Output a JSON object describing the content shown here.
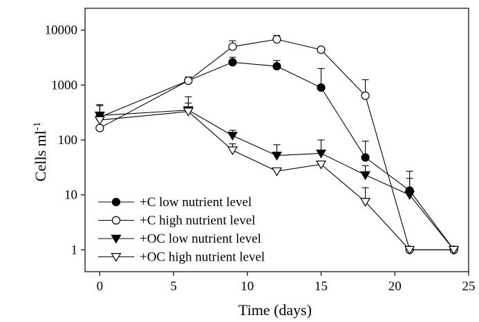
{
  "chart_data": {
    "type": "line",
    "xlabel": "Time (days)",
    "ylabel": "Cells ml",
    "ylabel_superscript": "-1",
    "xlim": [
      -1,
      25
    ],
    "ylim": [
      0.4,
      25000
    ],
    "y_scale": "log",
    "grid": false,
    "legend_position": "bottom-left",
    "x_ticks": [
      {
        "value": 0,
        "label": "0"
      },
      {
        "value": 5,
        "label": "5"
      },
      {
        "value": 10,
        "label": "10"
      },
      {
        "value": 15,
        "label": "15"
      },
      {
        "value": 20,
        "label": "20"
      },
      {
        "value": 25,
        "label": "25"
      }
    ],
    "y_ticks": [
      {
        "value": 1,
        "label": "1"
      },
      {
        "value": 10,
        "label": "10"
      },
      {
        "value": 100,
        "label": "100"
      },
      {
        "value": 1000,
        "label": "1000"
      },
      {
        "value": 10000,
        "label": "10000"
      }
    ],
    "series": [
      {
        "name": "+C low nutrient level",
        "marker": "filled-circle",
        "x": [
          0,
          6,
          9,
          12,
          15,
          18,
          21,
          24
        ],
        "y": [
          260,
          1200,
          2600,
          2200,
          900,
          48,
          12,
          1
        ],
        "error_upper": [
          420,
          null,
          3200,
          2800,
          2000,
          95,
          27,
          null
        ]
      },
      {
        "name": "+C high nutrient level",
        "marker": "open-circle",
        "x": [
          0,
          6,
          9,
          12,
          15,
          18,
          21,
          24
        ],
        "y": [
          165,
          1200,
          5000,
          6800,
          4400,
          640,
          1,
          1
        ],
        "error_upper": [
          null,
          1400,
          6400,
          8000,
          null,
          1250,
          null,
          null
        ]
      },
      {
        "name": "+OC low nutrient level",
        "marker": "filled-triangle-down",
        "x": [
          0,
          6,
          9,
          12,
          15,
          18,
          21,
          24
        ],
        "y": [
          280,
          350,
          120,
          52,
          57,
          23,
          10,
          1
        ],
        "error_upper": [
          440,
          470,
          150,
          82,
          100,
          34,
          20,
          null
        ]
      },
      {
        "name": "+OC high nutrient level",
        "marker": "open-triangle-down",
        "x": [
          0,
          6,
          9,
          12,
          15,
          18,
          21,
          24
        ],
        "y": [
          230,
          330,
          65,
          27,
          36,
          7.5,
          1,
          1
        ],
        "error_upper": [
          null,
          610,
          85,
          null,
          null,
          13.5,
          null,
          null
        ]
      }
    ]
  }
}
